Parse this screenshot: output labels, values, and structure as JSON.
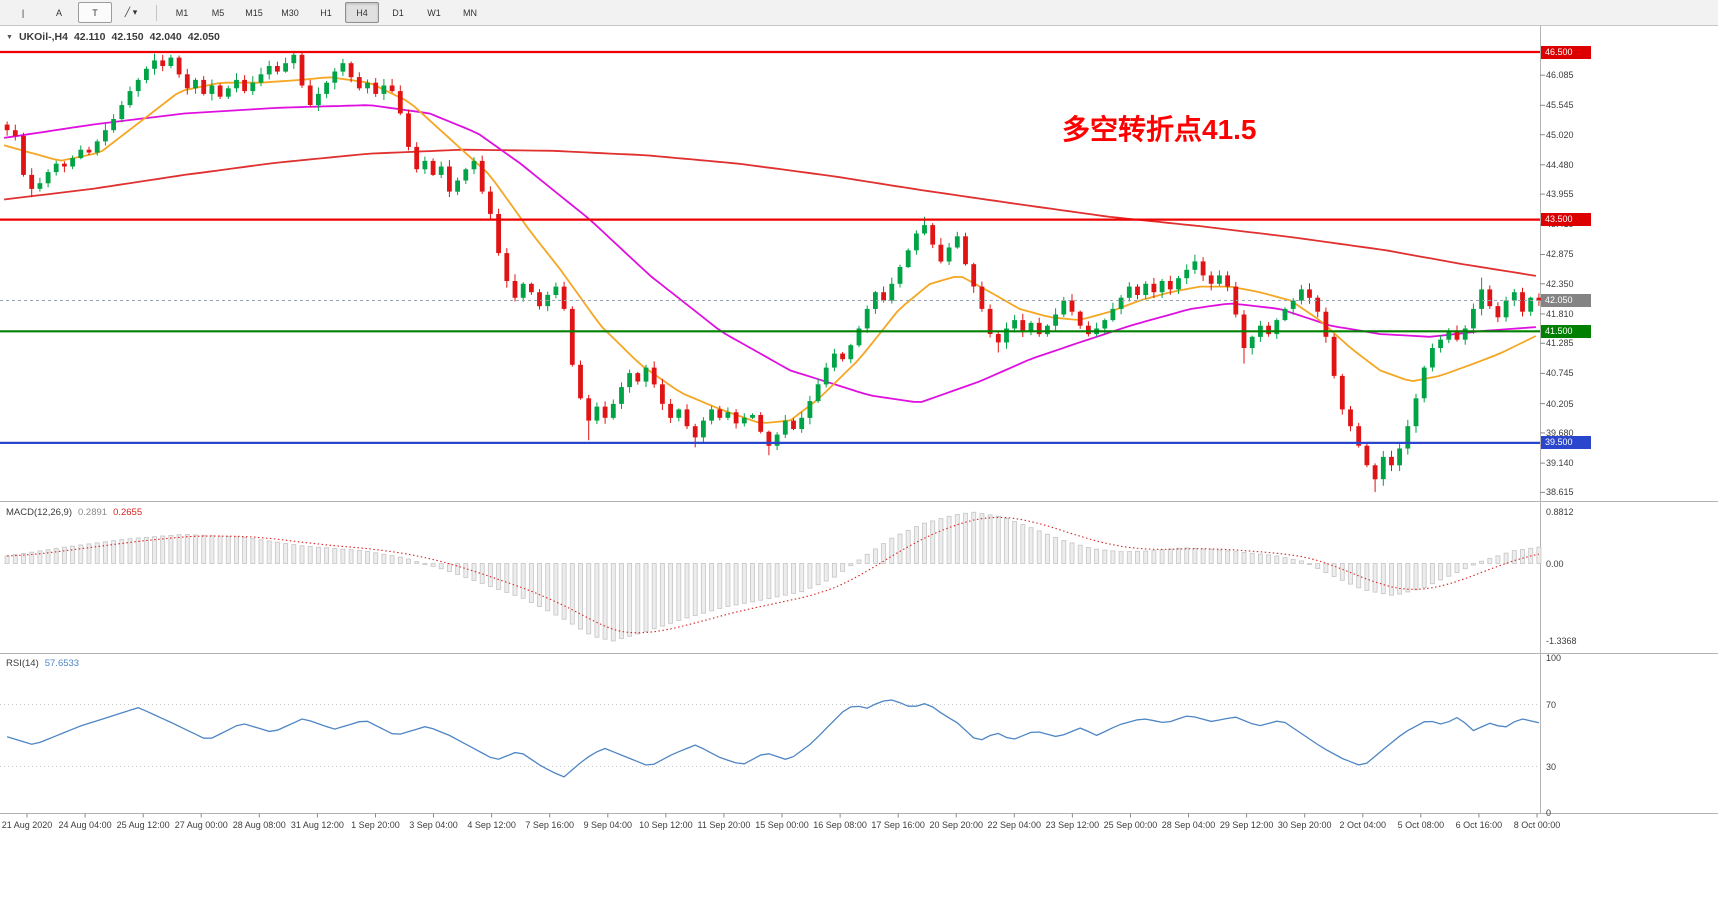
{
  "toolbar": {
    "tool_buttons": [
      {
        "name": "vertical-line-tool",
        "label": "|",
        "boxed": false
      },
      {
        "name": "text-annotation-tool",
        "label": "A",
        "boxed": false
      },
      {
        "name": "text-box-tool",
        "label": "T",
        "boxed": true
      },
      {
        "name": "shapes-dropdown",
        "label": "╱ ▾",
        "boxed": false
      }
    ],
    "timeframes": [
      "M1",
      "M5",
      "M15",
      "M30",
      "H1",
      "H4",
      "D1",
      "W1",
      "MN"
    ],
    "active_timeframe": "H4"
  },
  "symbol_bar": {
    "symbol": "UKOil-,H4",
    "open": "42.110",
    "high": "42.150",
    "low": "42.040",
    "close": "42.050"
  },
  "annotation": {
    "text": "多空转折点41.5",
    "color": "#FE0000"
  },
  "indicators": {
    "macd": {
      "label": "MACD(12,26,9)",
      "value_main": "0.2891",
      "value_signal": "0.2655",
      "axis": [
        "0.8812",
        "0.00",
        "-1.3368"
      ],
      "histogram_color": "#c9c9c9",
      "signal_color": "#d92525"
    },
    "rsi": {
      "label": "RSI(14)",
      "value": "57.6533",
      "axis": [
        "100",
        "70",
        "30",
        "0"
      ],
      "line_color": "#4E85C5"
    }
  },
  "price_axis": {
    "labels": [
      "46.085",
      "45.545",
      "45.020",
      "44.480",
      "43.955",
      "43.415",
      "42.875",
      "42.350",
      "41.810",
      "41.285",
      "40.745",
      "40.205",
      "39.680",
      "39.140",
      "38.615"
    ],
    "boxed": [
      {
        "label": "46.500",
        "price": 46.5,
        "color": "#dd0000"
      },
      {
        "label": "43.500",
        "price": 43.5,
        "color": "#dd0000"
      },
      {
        "label": "42.050",
        "price": 42.05,
        "color": "#848484"
      },
      {
        "label": "41.500",
        "price": 41.5,
        "color": "#008000"
      },
      {
        "label": "39.500",
        "price": 39.5,
        "color": "#2946cc"
      }
    ]
  },
  "time_axis": {
    "labels": [
      "21 Aug 2020",
      "24 Aug 04:00",
      "25 Aug 12:00",
      "27 Aug 00:00",
      "28 Aug 08:00",
      "31 Aug 12:00",
      "1 Sep 20:00",
      "3 Sep 04:00",
      "4 Sep 12:00",
      "7 Sep 16:00",
      "9 Sep 04:00",
      "10 Sep 12:00",
      "11 Sep 20:00",
      "15 Sep 00:00",
      "16 Sep 08:00",
      "17 Sep 16:00",
      "20 Sep 20:00",
      "22 Sep 04:00",
      "23 Sep 12:00",
      "25 Sep 00:00",
      "28 Sep 04:00",
      "29 Sep 12:00",
      "30 Sep 20:00",
      "2 Oct 04:00",
      "5 Oct 08:00",
      "6 Oct 16:00",
      "8 Oct 00:00"
    ]
  },
  "levels": [
    {
      "price": 46.5,
      "color": "#ee0000",
      "width": 2.2,
      "style": "solid"
    },
    {
      "price": 43.5,
      "color": "#ee0000",
      "width": 2.2,
      "style": "solid"
    },
    {
      "price": 41.5,
      "color": "#008000",
      "width": 2.2,
      "style": "solid"
    },
    {
      "price": 39.5,
      "color": "#2946cc",
      "width": 2.2,
      "style": "solid"
    },
    {
      "price": 42.05,
      "color": "#9aa4ae",
      "width": 1,
      "style": "dashed"
    }
  ],
  "chart_data": {
    "type": "candlestick",
    "symbol": "UKOil-",
    "timeframe": "H4",
    "up_color": "#00a345",
    "down_color": "#e01414",
    "candles": {
      "open_first": 45.2,
      "closes": [
        45.1,
        45.0,
        44.3,
        44.05,
        44.15,
        44.35,
        44.5,
        44.45,
        44.6,
        44.75,
        44.7,
        44.9,
        45.1,
        45.3,
        45.55,
        45.8,
        46.0,
        46.2,
        46.35,
        46.25,
        46.4,
        46.1,
        45.85,
        46.0,
        45.75,
        45.9,
        45.7,
        45.85,
        46.0,
        45.8,
        45.95,
        46.1,
        46.25,
        46.15,
        46.3,
        46.45,
        45.9,
        45.55,
        45.75,
        45.95,
        46.15,
        46.3,
        46.05,
        45.85,
        45.95,
        45.75,
        45.9,
        45.8,
        45.4,
        44.8,
        44.4,
        44.55,
        44.3,
        44.45,
        44.0,
        44.2,
        44.4,
        44.55,
        44.0,
        43.6,
        42.9,
        42.4,
        42.1,
        42.35,
        42.2,
        41.95,
        42.15,
        42.3,
        41.9,
        40.9,
        40.3,
        39.9,
        40.15,
        39.95,
        40.2,
        40.5,
        40.75,
        40.6,
        40.85,
        40.55,
        40.2,
        39.95,
        40.1,
        39.8,
        39.6,
        39.9,
        40.1,
        39.95,
        40.05,
        39.85,
        39.95,
        40.0,
        39.7,
        39.45,
        39.65,
        39.9,
        39.75,
        39.95,
        40.25,
        40.55,
        40.85,
        41.1,
        41.0,
        41.25,
        41.55,
        41.9,
        42.2,
        42.05,
        42.35,
        42.65,
        42.95,
        43.25,
        43.4,
        43.05,
        42.75,
        43.0,
        43.2,
        42.7,
        42.3,
        41.9,
        41.45,
        41.3,
        41.55,
        41.7,
        41.5,
        41.65,
        41.45,
        41.6,
        41.8,
        42.05,
        41.85,
        41.6,
        41.45,
        41.55,
        41.7,
        41.9,
        42.1,
        42.3,
        42.15,
        42.35,
        42.2,
        42.4,
        42.25,
        42.45,
        42.6,
        42.75,
        42.5,
        42.35,
        42.5,
        42.3,
        41.8,
        41.2,
        41.4,
        41.6,
        41.45,
        41.7,
        41.9,
        42.05,
        42.25,
        42.1,
        41.85,
        41.4,
        40.7,
        40.1,
        39.8,
        39.45,
        39.1,
        38.85,
        39.25,
        39.1,
        39.4,
        39.8,
        40.3,
        40.85,
        41.2,
        41.35,
        41.5,
        41.35,
        41.55,
        41.9,
        42.25,
        41.95,
        41.75,
        42.05,
        42.2,
        41.85,
        42.1,
        42.05
      ],
      "extremes": [
        [
          3,
          "l",
          43.9
        ],
        [
          18,
          "h",
          46.47
        ],
        [
          20,
          "h",
          46.45
        ],
        [
          35,
          "h",
          46.52
        ],
        [
          61,
          "l",
          42.28
        ],
        [
          71,
          "l",
          39.55
        ],
        [
          84,
          "l",
          39.42
        ],
        [
          93,
          "l",
          39.28
        ],
        [
          112,
          "h",
          43.55
        ],
        [
          121,
          "l",
          41.12
        ],
        [
          145,
          "h",
          42.87
        ],
        [
          151,
          "l",
          40.92
        ],
        [
          167,
          "l",
          38.62
        ],
        [
          180,
          "h",
          42.46
        ]
      ]
    },
    "moving_averages": [
      {
        "name": "slow-ma",
        "color": "#e03030",
        "width": 1.8,
        "points": [
          [
            0,
            43.85
          ],
          [
            0.06,
            44.05
          ],
          [
            0.12,
            44.3
          ],
          [
            0.18,
            44.52
          ],
          [
            0.24,
            44.68
          ],
          [
            0.3,
            44.75
          ],
          [
            0.36,
            44.73
          ],
          [
            0.42,
            44.65
          ],
          [
            0.48,
            44.5
          ],
          [
            0.54,
            44.28
          ],
          [
            0.6,
            44.02
          ],
          [
            0.66,
            43.78
          ],
          [
            0.72,
            43.55
          ],
          [
            0.78,
            43.38
          ],
          [
            0.84,
            43.18
          ],
          [
            0.9,
            42.95
          ],
          [
            0.95,
            42.7
          ],
          [
            1,
            42.48
          ]
        ]
      },
      {
        "name": "medium-ma",
        "color": "#df10df",
        "width": 1.8,
        "points": [
          [
            0,
            44.95
          ],
          [
            0.06,
            45.2
          ],
          [
            0.12,
            45.4
          ],
          [
            0.18,
            45.5
          ],
          [
            0.24,
            45.55
          ],
          [
            0.279,
            45.4
          ],
          [
            0.31,
            45.05
          ],
          [
            0.338,
            44.5
          ],
          [
            0.383,
            43.5
          ],
          [
            0.422,
            42.5
          ],
          [
            0.468,
            41.5
          ],
          [
            0.513,
            40.8
          ],
          [
            0.565,
            40.35
          ],
          [
            0.597,
            40.22
          ],
          [
            0.636,
            40.6
          ],
          [
            0.669,
            41.0
          ],
          [
            0.701,
            41.3
          ],
          [
            0.734,
            41.6
          ],
          [
            0.773,
            41.9
          ],
          [
            0.799,
            42.0
          ],
          [
            0.831,
            41.9
          ],
          [
            0.864,
            41.6
          ],
          [
            0.896,
            41.45
          ],
          [
            0.929,
            41.4
          ],
          [
            0.961,
            41.5
          ],
          [
            1,
            41.58
          ]
        ]
      },
      {
        "name": "fast-ma",
        "color": "#f5a623",
        "width": 1.8,
        "points": [
          [
            0,
            44.85
          ],
          [
            0.039,
            44.55
          ],
          [
            0.065,
            44.7
          ],
          [
            0.091,
            45.25
          ],
          [
            0.117,
            45.8
          ],
          [
            0.143,
            45.95
          ],
          [
            0.169,
            45.95
          ],
          [
            0.195,
            46.0
          ],
          [
            0.214,
            46.05
          ],
          [
            0.24,
            45.95
          ],
          [
            0.266,
            45.6
          ],
          [
            0.292,
            44.95
          ],
          [
            0.318,
            44.3
          ],
          [
            0.344,
            43.3
          ],
          [
            0.364,
            42.6
          ],
          [
            0.39,
            41.6
          ],
          [
            0.416,
            40.9
          ],
          [
            0.442,
            40.4
          ],
          [
            0.468,
            40.1
          ],
          [
            0.494,
            39.85
          ],
          [
            0.513,
            39.9
          ],
          [
            0.532,
            40.3
          ],
          [
            0.558,
            41.0
          ],
          [
            0.584,
            41.9
          ],
          [
            0.604,
            42.35
          ],
          [
            0.623,
            42.5
          ],
          [
            0.643,
            42.2
          ],
          [
            0.662,
            41.9
          ],
          [
            0.682,
            41.75
          ],
          [
            0.701,
            41.7
          ],
          [
            0.721,
            41.85
          ],
          [
            0.74,
            42.05
          ],
          [
            0.76,
            42.2
          ],
          [
            0.779,
            42.3
          ],
          [
            0.799,
            42.3
          ],
          [
            0.818,
            42.2
          ],
          [
            0.838,
            42.05
          ],
          [
            0.857,
            41.7
          ],
          [
            0.877,
            41.2
          ],
          [
            0.896,
            40.8
          ],
          [
            0.916,
            40.6
          ],
          [
            0.935,
            40.7
          ],
          [
            0.955,
            40.9
          ],
          [
            0.974,
            41.1
          ],
          [
            1,
            41.45
          ]
        ]
      }
    ],
    "macd_points": [
      [
        0,
        0.12
      ],
      [
        0.04,
        0.28
      ],
      [
        0.08,
        0.42
      ],
      [
        0.117,
        0.5
      ],
      [
        0.156,
        0.45
      ],
      [
        0.195,
        0.3
      ],
      [
        0.234,
        0.22
      ],
      [
        0.26,
        0.1
      ],
      [
        0.286,
        -0.1
      ],
      [
        0.312,
        -0.35
      ],
      [
        0.338,
        -0.6
      ],
      [
        0.364,
        -0.95
      ],
      [
        0.383,
        -1.25
      ],
      [
        0.396,
        -1.33
      ],
      [
        0.416,
        -1.18
      ],
      [
        0.442,
        -0.95
      ],
      [
        0.468,
        -0.75
      ],
      [
        0.494,
        -0.62
      ],
      [
        0.519,
        -0.48
      ],
      [
        0.539,
        -0.25
      ],
      [
        0.558,
        0.1
      ],
      [
        0.578,
        0.45
      ],
      [
        0.597,
        0.68
      ],
      [
        0.617,
        0.83
      ],
      [
        0.63,
        0.88
      ],
      [
        0.649,
        0.8
      ],
      [
        0.669,
        0.6
      ],
      [
        0.688,
        0.4
      ],
      [
        0.708,
        0.25
      ],
      [
        0.727,
        0.2
      ],
      [
        0.747,
        0.22
      ],
      [
        0.766,
        0.27
      ],
      [
        0.786,
        0.24
      ],
      [
        0.805,
        0.19
      ],
      [
        0.825,
        0.14
      ],
      [
        0.844,
        0.04
      ],
      [
        0.864,
        -0.22
      ],
      [
        0.883,
        -0.45
      ],
      [
        0.903,
        -0.55
      ],
      [
        0.922,
        -0.42
      ],
      [
        0.942,
        -0.18
      ],
      [
        0.961,
        0.05
      ],
      [
        0.981,
        0.22
      ],
      [
        1,
        0.2891
      ]
    ],
    "rsi_points": [
      [
        0,
        50
      ],
      [
        0.02,
        44
      ],
      [
        0.05,
        56
      ],
      [
        0.088,
        68
      ],
      [
        0.11,
        58
      ],
      [
        0.133,
        47
      ],
      [
        0.155,
        58
      ],
      [
        0.175,
        52
      ],
      [
        0.195,
        61
      ],
      [
        0.215,
        54
      ],
      [
        0.235,
        60
      ],
      [
        0.255,
        50
      ],
      [
        0.275,
        56
      ],
      [
        0.29,
        50
      ],
      [
        0.305,
        42
      ],
      [
        0.32,
        34
      ],
      [
        0.335,
        40
      ],
      [
        0.35,
        30
      ],
      [
        0.364,
        23
      ],
      [
        0.378,
        35
      ],
      [
        0.39,
        42
      ],
      [
        0.405,
        36
      ],
      [
        0.42,
        30
      ],
      [
        0.435,
        38
      ],
      [
        0.45,
        44
      ],
      [
        0.465,
        36
      ],
      [
        0.48,
        31
      ],
      [
        0.495,
        39
      ],
      [
        0.51,
        34
      ],
      [
        0.525,
        45
      ],
      [
        0.535,
        55
      ],
      [
        0.545,
        65
      ],
      [
        0.553,
        70
      ],
      [
        0.56,
        67
      ],
      [
        0.57,
        72
      ],
      [
        0.578,
        73
      ],
      [
        0.59,
        68
      ],
      [
        0.6,
        71
      ],
      [
        0.61,
        64
      ],
      [
        0.62,
        58
      ],
      [
        0.633,
        46
      ],
      [
        0.645,
        52
      ],
      [
        0.655,
        47
      ],
      [
        0.67,
        53
      ],
      [
        0.685,
        49
      ],
      [
        0.7,
        55
      ],
      [
        0.71,
        50
      ],
      [
        0.725,
        57
      ],
      [
        0.74,
        61
      ],
      [
        0.755,
        58
      ],
      [
        0.77,
        63
      ],
      [
        0.785,
        59
      ],
      [
        0.8,
        62
      ],
      [
        0.815,
        56
      ],
      [
        0.83,
        60
      ],
      [
        0.845,
        50
      ],
      [
        0.857,
        42
      ],
      [
        0.87,
        35
      ],
      [
        0.883,
        30
      ],
      [
        0.895,
        40
      ],
      [
        0.91,
        52
      ],
      [
        0.925,
        60
      ],
      [
        0.935,
        57
      ],
      [
        0.945,
        62
      ],
      [
        0.955,
        53
      ],
      [
        0.965,
        58
      ],
      [
        0.975,
        55
      ],
      [
        0.985,
        61
      ],
      [
        1,
        57.65
      ]
    ]
  }
}
